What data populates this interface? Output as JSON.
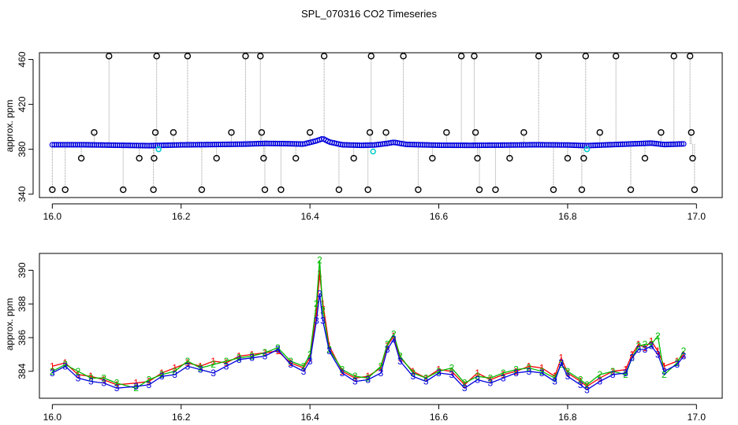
{
  "title": "SPL_070316  CO2 Timeseries",
  "colors": {
    "series1": "#ff0000",
    "series2": "#00bb00",
    "series3": "#0000dd",
    "outlier": "#000000",
    "flagged": "#00cccc",
    "spike": "#999999"
  },
  "chart_data": [
    {
      "type": "scatter",
      "name": "top-panel",
      "ylabel": "approx. ppm",
      "xlim": [
        15.98,
        17.04
      ],
      "ylim": [
        337,
        466
      ],
      "xticks": [
        "16.0",
        "16.2",
        "16.4",
        "16.6",
        "16.8",
        "17.0"
      ],
      "xtick_values": [
        16.0,
        16.2,
        16.4,
        16.6,
        16.8,
        17.0
      ],
      "yticks": [
        "340",
        "380",
        "420",
        "460"
      ],
      "ytick_values": [
        340,
        380,
        420,
        460
      ],
      "baseline": [
        [
          16.0,
          384.0
        ],
        [
          16.05,
          384.0
        ],
        [
          16.1,
          383.6
        ],
        [
          16.15,
          383.2
        ],
        [
          16.2,
          383.9
        ],
        [
          16.25,
          384.2
        ],
        [
          16.3,
          384.6
        ],
        [
          16.33,
          385.2
        ],
        [
          16.36,
          385.0
        ],
        [
          16.39,
          384.6
        ],
        [
          16.41,
          387.5
        ],
        [
          16.42,
          389.5
        ],
        [
          16.43,
          386.5
        ],
        [
          16.45,
          384.0
        ],
        [
          16.48,
          383.5
        ],
        [
          16.5,
          383.8
        ],
        [
          16.52,
          385.2
        ],
        [
          16.53,
          386.2
        ],
        [
          16.55,
          384.3
        ],
        [
          16.6,
          383.6
        ],
        [
          16.65,
          383.5
        ],
        [
          16.7,
          383.7
        ],
        [
          16.75,
          384.0
        ],
        [
          16.8,
          383.8
        ],
        [
          16.83,
          383.2
        ],
        [
          16.85,
          383.7
        ],
        [
          16.9,
          384.8
        ],
        [
          16.93,
          385.5
        ],
        [
          16.95,
          384.2
        ],
        [
          16.98,
          384.8
        ]
      ],
      "outliers": [
        [
          16.0,
          344
        ],
        [
          16.02,
          344
        ],
        [
          16.045,
          372
        ],
        [
          16.065,
          395
        ],
        [
          16.088,
          463
        ],
        [
          16.11,
          344
        ],
        [
          16.135,
          372
        ],
        [
          16.157,
          344
        ],
        [
          16.158,
          372
        ],
        [
          16.16,
          395
        ],
        [
          16.162,
          463
        ],
        [
          16.188,
          395
        ],
        [
          16.21,
          463
        ],
        [
          16.232,
          344
        ],
        [
          16.255,
          372
        ],
        [
          16.278,
          395
        ],
        [
          16.3,
          463
        ],
        [
          16.323,
          463
        ],
        [
          16.325,
          395
        ],
        [
          16.328,
          372
        ],
        [
          16.33,
          344
        ],
        [
          16.355,
          344
        ],
        [
          16.378,
          372
        ],
        [
          16.4,
          395
        ],
        [
          16.422,
          463
        ],
        [
          16.445,
          344
        ],
        [
          16.468,
          372
        ],
        [
          16.49,
          344
        ],
        [
          16.493,
          395
        ],
        [
          16.495,
          463
        ],
        [
          16.518,
          395
        ],
        [
          16.545,
          463
        ],
        [
          16.568,
          344
        ],
        [
          16.59,
          372
        ],
        [
          16.612,
          395
        ],
        [
          16.635,
          463
        ],
        [
          16.655,
          463
        ],
        [
          16.657,
          395
        ],
        [
          16.66,
          372
        ],
        [
          16.663,
          344
        ],
        [
          16.688,
          344
        ],
        [
          16.71,
          372
        ],
        [
          16.732,
          395
        ],
        [
          16.755,
          463
        ],
        [
          16.778,
          344
        ],
        [
          16.8,
          372
        ],
        [
          16.822,
          344
        ],
        [
          16.825,
          372
        ],
        [
          16.828,
          463
        ],
        [
          16.85,
          395
        ],
        [
          16.875,
          463
        ],
        [
          16.898,
          344
        ],
        [
          16.92,
          372
        ],
        [
          16.945,
          395
        ],
        [
          16.965,
          463
        ],
        [
          16.99,
          463
        ],
        [
          16.992,
          395
        ],
        [
          16.994,
          372
        ],
        [
          16.997,
          344
        ]
      ],
      "flagged": [
        [
          16.165,
          380
        ],
        [
          16.498,
          378
        ],
        [
          16.83,
          380
        ]
      ]
    },
    {
      "type": "line",
      "name": "bottom-panel",
      "ylabel": "approx. ppm",
      "xlim": [
        15.98,
        17.04
      ],
      "ylim": [
        382.4,
        391.0
      ],
      "xticks": [
        "16.0",
        "16.2",
        "16.4",
        "16.6",
        "16.8",
        "17.0"
      ],
      "xtick_values": [
        16.0,
        16.2,
        16.4,
        16.6,
        16.8,
        17.0
      ],
      "yticks": [
        "384",
        "386",
        "388",
        "390"
      ],
      "ytick_values": [
        384,
        386,
        388,
        390
      ],
      "series": [
        {
          "name": "1",
          "marker": "1",
          "color": "#ff0000",
          "points": [
            [
              16.0,
              384.3
            ],
            [
              16.02,
              384.5
            ],
            [
              16.04,
              383.8
            ],
            [
              16.06,
              383.7
            ],
            [
              16.08,
              383.5
            ],
            [
              16.1,
              383.2
            ],
            [
              16.13,
              383.3
            ],
            [
              16.15,
              383.4
            ],
            [
              16.17,
              383.9
            ],
            [
              16.19,
              384.2
            ],
            [
              16.21,
              384.5
            ],
            [
              16.23,
              384.3
            ],
            [
              16.25,
              384.6
            ],
            [
              16.27,
              384.5
            ],
            [
              16.29,
              384.9
            ],
            [
              16.31,
              385.0
            ],
            [
              16.33,
              385.1
            ],
            [
              16.35,
              385.2
            ],
            [
              16.37,
              384.5
            ],
            [
              16.39,
              384.2
            ],
            [
              16.4,
              384.8
            ],
            [
              16.41,
              387.5
            ],
            [
              16.415,
              389.8
            ],
            [
              16.42,
              388.0
            ],
            [
              16.43,
              385.5
            ],
            [
              16.45,
              384.0
            ],
            [
              16.47,
              383.6
            ],
            [
              16.49,
              383.7
            ],
            [
              16.51,
              384.2
            ],
            [
              16.52,
              385.5
            ],
            [
              16.53,
              386.1
            ],
            [
              16.54,
              384.8
            ],
            [
              16.56,
              384.0
            ],
            [
              16.58,
              383.6
            ],
            [
              16.6,
              384.1
            ],
            [
              16.62,
              384.0
            ],
            [
              16.64,
              383.2
            ],
            [
              16.66,
              383.9
            ],
            [
              16.68,
              383.5
            ],
            [
              16.7,
              383.8
            ],
            [
              16.72,
              384.0
            ],
            [
              16.74,
              384.3
            ],
            [
              16.76,
              384.2
            ],
            [
              16.78,
              383.7
            ],
            [
              16.79,
              384.8
            ],
            [
              16.8,
              383.9
            ],
            [
              16.82,
              383.4
            ],
            [
              16.83,
              383.1
            ],
            [
              16.85,
              383.6
            ],
            [
              16.87,
              384.0
            ],
            [
              16.89,
              384.1
            ],
            [
              16.9,
              385.0
            ],
            [
              16.91,
              385.6
            ],
            [
              16.92,
              385.4
            ],
            [
              16.93,
              385.8
            ],
            [
              16.94,
              385.2
            ],
            [
              16.95,
              384.3
            ],
            [
              16.97,
              384.6
            ],
            [
              16.98,
              385.0
            ]
          ]
        },
        {
          "name": "2",
          "marker": "2",
          "color": "#00bb00",
          "points": [
            [
              16.0,
              384.0
            ],
            [
              16.02,
              384.4
            ],
            [
              16.04,
              384.0
            ],
            [
              16.06,
              383.6
            ],
            [
              16.08,
              383.6
            ],
            [
              16.1,
              383.3
            ],
            [
              16.13,
              383.0
            ],
            [
              16.15,
              383.5
            ],
            [
              16.17,
              383.8
            ],
            [
              16.19,
              384.0
            ],
            [
              16.21,
              384.6
            ],
            [
              16.23,
              384.2
            ],
            [
              16.25,
              384.4
            ],
            [
              16.27,
              384.6
            ],
            [
              16.29,
              384.8
            ],
            [
              16.31,
              384.9
            ],
            [
              16.33,
              385.1
            ],
            [
              16.35,
              385.4
            ],
            [
              16.37,
              384.6
            ],
            [
              16.39,
              384.3
            ],
            [
              16.4,
              385.0
            ],
            [
              16.41,
              388.0
            ],
            [
              16.415,
              390.6
            ],
            [
              16.42,
              387.6
            ],
            [
              16.43,
              385.3
            ],
            [
              16.45,
              384.1
            ],
            [
              16.47,
              383.7
            ],
            [
              16.49,
              383.6
            ],
            [
              16.51,
              384.3
            ],
            [
              16.52,
              385.6
            ],
            [
              16.53,
              386.2
            ],
            [
              16.54,
              384.9
            ],
            [
              16.56,
              383.9
            ],
            [
              16.58,
              383.6
            ],
            [
              16.6,
              384.0
            ],
            [
              16.62,
              384.2
            ],
            [
              16.64,
              383.3
            ],
            [
              16.66,
              383.7
            ],
            [
              16.68,
              383.6
            ],
            [
              16.7,
              383.9
            ],
            [
              16.72,
              384.1
            ],
            [
              16.74,
              384.2
            ],
            [
              16.76,
              384.0
            ],
            [
              16.78,
              383.6
            ],
            [
              16.79,
              384.4
            ],
            [
              16.8,
              384.0
            ],
            [
              16.82,
              383.5
            ],
            [
              16.83,
              383.2
            ],
            [
              16.85,
              383.8
            ],
            [
              16.87,
              384.0
            ],
            [
              16.89,
              383.8
            ],
            [
              16.9,
              384.8
            ],
            [
              16.91,
              385.5
            ],
            [
              16.92,
              385.6
            ],
            [
              16.93,
              385.6
            ],
            [
              16.94,
              386.1
            ],
            [
              16.95,
              383.8
            ],
            [
              16.97,
              384.5
            ],
            [
              16.98,
              385.2
            ]
          ]
        },
        {
          "name": "3",
          "marker": "3",
          "color": "#0000dd",
          "points": [
            [
              16.0,
              383.9
            ],
            [
              16.02,
              384.3
            ],
            [
              16.04,
              383.6
            ],
            [
              16.06,
              383.4
            ],
            [
              16.08,
              383.3
            ],
            [
              16.1,
              383.0
            ],
            [
              16.13,
              383.1
            ],
            [
              16.15,
              383.2
            ],
            [
              16.17,
              383.7
            ],
            [
              16.19,
              383.8
            ],
            [
              16.21,
              384.3
            ],
            [
              16.23,
              384.1
            ],
            [
              16.25,
              383.9
            ],
            [
              16.27,
              384.3
            ],
            [
              16.29,
              384.7
            ],
            [
              16.31,
              384.8
            ],
            [
              16.33,
              384.9
            ],
            [
              16.35,
              385.3
            ],
            [
              16.37,
              384.4
            ],
            [
              16.39,
              384.0
            ],
            [
              16.4,
              384.6
            ],
            [
              16.41,
              387.0
            ],
            [
              16.415,
              388.6
            ],
            [
              16.42,
              387.0
            ],
            [
              16.43,
              385.2
            ],
            [
              16.45,
              383.9
            ],
            [
              16.47,
              383.4
            ],
            [
              16.49,
              383.5
            ],
            [
              16.51,
              383.9
            ],
            [
              16.52,
              385.3
            ],
            [
              16.53,
              385.9
            ],
            [
              16.54,
              384.6
            ],
            [
              16.56,
              383.7
            ],
            [
              16.58,
              383.4
            ],
            [
              16.6,
              383.9
            ],
            [
              16.62,
              383.8
            ],
            [
              16.64,
              383.0
            ],
            [
              16.66,
              383.5
            ],
            [
              16.68,
              383.3
            ],
            [
              16.7,
              383.6
            ],
            [
              16.72,
              383.9
            ],
            [
              16.74,
              384.0
            ],
            [
              16.76,
              383.9
            ],
            [
              16.78,
              383.4
            ],
            [
              16.79,
              384.5
            ],
            [
              16.8,
              383.7
            ],
            [
              16.82,
              383.2
            ],
            [
              16.83,
              382.9
            ],
            [
              16.85,
              383.4
            ],
            [
              16.87,
              383.8
            ],
            [
              16.89,
              383.9
            ],
            [
              16.9,
              384.8
            ],
            [
              16.91,
              385.3
            ],
            [
              16.92,
              385.3
            ],
            [
              16.93,
              385.5
            ],
            [
              16.94,
              385.0
            ],
            [
              16.95,
              384.0
            ],
            [
              16.97,
              384.4
            ],
            [
              16.98,
              384.9
            ]
          ]
        }
      ]
    }
  ]
}
